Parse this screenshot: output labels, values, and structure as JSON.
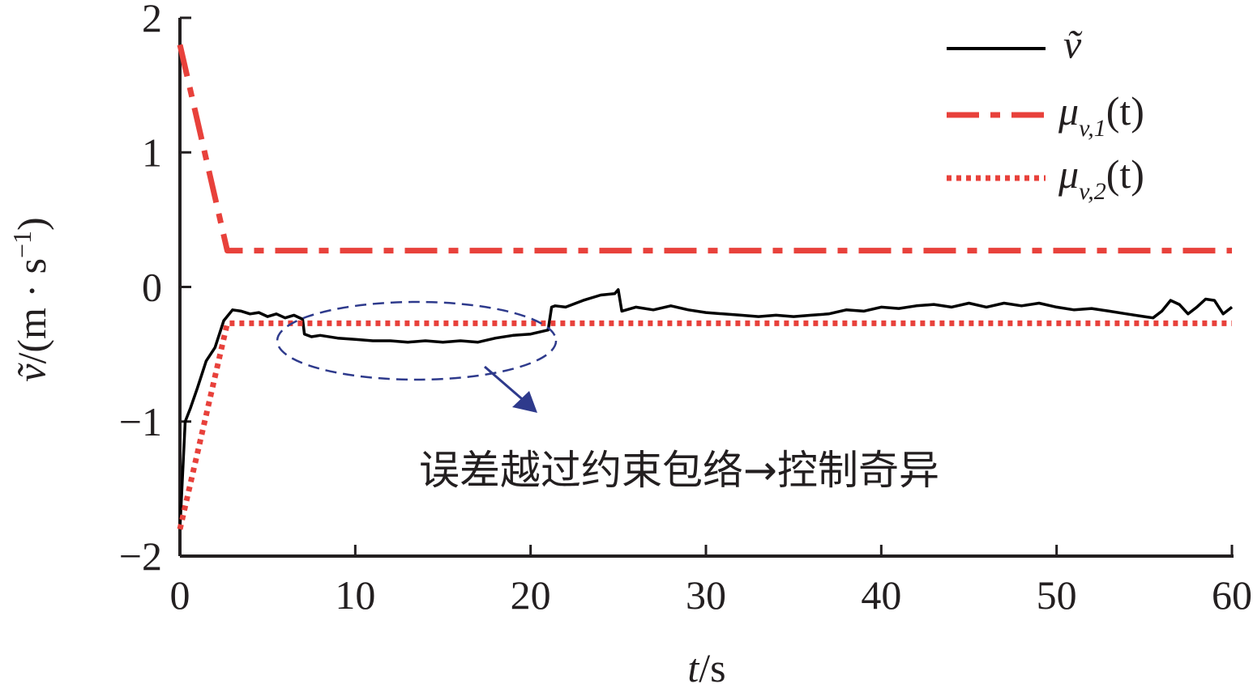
{
  "chart_data": {
    "type": "line",
    "x_axis": {
      "label_italic": "t",
      "label_rest": "/s",
      "range": [
        0,
        60
      ],
      "ticks": [
        0,
        10,
        20,
        30,
        40,
        50,
        60
      ],
      "tick_labels": [
        "0",
        "10",
        "20",
        "30",
        "40",
        "50",
        "60"
      ]
    },
    "y_axis": {
      "label_symbol": "ṽ",
      "label_rest": "/(m · s",
      "label_sup": "−1",
      "label_close": ")",
      "range": [
        -2,
        2
      ],
      "ticks": [
        2,
        1,
        0,
        -1,
        -2
      ],
      "tick_labels": [
        "2",
        "1",
        "0",
        "−1",
        "−2"
      ]
    },
    "grid": false,
    "legend_position": "top-right",
    "series": [
      {
        "name": "ṽ",
        "style": "solid",
        "color": "#000000",
        "x": [
          0,
          0.3,
          0.6,
          1.0,
          1.5,
          2.0,
          2.5,
          3.0,
          3.5,
          4.0,
          4.5,
          5.0,
          5.5,
          6.0,
          6.5,
          7.0,
          7.1,
          7.5,
          8,
          9,
          10,
          11,
          12,
          13,
          14,
          15,
          16,
          17,
          18,
          19,
          20,
          21,
          21.2,
          21.4,
          22,
          23,
          24,
          24.8,
          25,
          25.2,
          26,
          27,
          28,
          29,
          30,
          31,
          32,
          33,
          34,
          35,
          36,
          37,
          38,
          39,
          40,
          41,
          42,
          43,
          44,
          45,
          46,
          47,
          48,
          49,
          50,
          51,
          52,
          53,
          54,
          55,
          55.5,
          56,
          56.5,
          57,
          57.5,
          58,
          58.5,
          59,
          59.5,
          60
        ],
        "y": [
          -1.8,
          -1.0,
          -0.9,
          -0.75,
          -0.55,
          -0.45,
          -0.25,
          -0.17,
          -0.18,
          -0.2,
          -0.19,
          -0.22,
          -0.2,
          -0.23,
          -0.21,
          -0.24,
          -0.35,
          -0.37,
          -0.36,
          -0.38,
          -0.39,
          -0.4,
          -0.4,
          -0.41,
          -0.4,
          -0.41,
          -0.4,
          -0.41,
          -0.38,
          -0.36,
          -0.35,
          -0.32,
          -0.15,
          -0.14,
          -0.15,
          -0.1,
          -0.06,
          -0.05,
          -0.02,
          -0.18,
          -0.15,
          -0.17,
          -0.14,
          -0.17,
          -0.19,
          -0.2,
          -0.21,
          -0.22,
          -0.21,
          -0.22,
          -0.21,
          -0.2,
          -0.17,
          -0.18,
          -0.15,
          -0.16,
          -0.14,
          -0.13,
          -0.15,
          -0.12,
          -0.15,
          -0.12,
          -0.14,
          -0.12,
          -0.15,
          -0.17,
          -0.16,
          -0.18,
          -0.2,
          -0.22,
          -0.23,
          -0.18,
          -0.1,
          -0.13,
          -0.2,
          -0.15,
          -0.09,
          -0.1,
          -0.2,
          -0.15
        ]
      },
      {
        "name": "μv,1(t)",
        "style": "dashdot",
        "color": "#e8413b",
        "x": [
          0,
          2.7,
          60
        ],
        "y": [
          1.8,
          0.27,
          0.27
        ]
      },
      {
        "name": "μv,2(t)",
        "style": "dotted",
        "color": "#e8413b",
        "x": [
          0,
          2.7,
          60
        ],
        "y": [
          -1.8,
          -0.27,
          -0.27
        ]
      }
    ],
    "legend": [
      {
        "symbol": "ṽ",
        "sub": "",
        "suffix": ""
      },
      {
        "symbol": "μ",
        "sub": "v,1",
        "suffix": "(t)"
      },
      {
        "symbol": "μ",
        "sub": "v,2",
        "suffix": "(t)"
      }
    ],
    "annotation": {
      "text": "误差越过约束包络→控制奇异",
      "ellipse_center": {
        "x": 13.5,
        "y": -0.4
      },
      "ellipse_color": "#2e3a8c",
      "arrow_color": "#2e3a8c"
    }
  }
}
